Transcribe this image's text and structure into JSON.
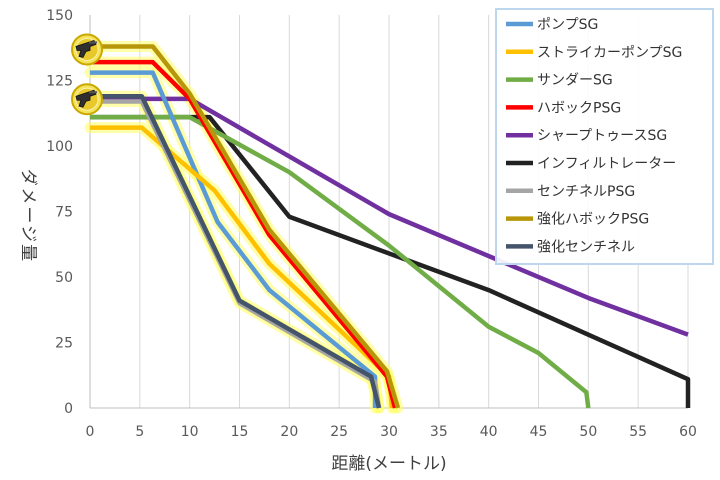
{
  "chart_data": {
    "type": "line",
    "xlabel": "距離(メートル)",
    "ylabel": "ダメージ量",
    "xlim": [
      0,
      60
    ],
    "ylim": [
      0,
      150
    ],
    "x_ticks": [
      "0",
      "5",
      "10",
      "15",
      "20",
      "25",
      "30",
      "35",
      "40",
      "45",
      "50",
      "55",
      "60"
    ],
    "y_ticks": [
      "0",
      "25",
      "50",
      "75",
      "100",
      "125",
      "150"
    ],
    "grid": "vertical",
    "legend_position": "top-right",
    "series": [
      {
        "name": "ポンプSG",
        "color": "#5b9bd5",
        "highlight": true,
        "x": [
          0,
          6.3,
          12.8,
          18,
          28.6,
          28.6
        ],
        "y": [
          128,
          128,
          71,
          45,
          12,
          0
        ]
      },
      {
        "name": "ストライカーポンプSG",
        "color": "#ffc000",
        "highlight": true,
        "x": [
          0,
          5.2,
          12.5,
          18,
          30,
          30.3
        ],
        "y": [
          107,
          107,
          83,
          55,
          12,
          0
        ]
      },
      {
        "name": "サンダーSG",
        "color": "#70ad47",
        "highlight": false,
        "x": [
          0,
          10,
          20,
          30,
          40,
          45,
          49.8,
          50
        ],
        "y": [
          111,
          111,
          90,
          62,
          31,
          21,
          6,
          0
        ]
      },
      {
        "name": "ハボックPSG",
        "color": "#ff0000",
        "highlight": true,
        "x": [
          0,
          6.3,
          10,
          18,
          29.8,
          30.6
        ],
        "y": [
          132,
          132,
          118,
          66,
          12,
          0
        ]
      },
      {
        "name": "シャープトゥースSG",
        "color": "#7030a0",
        "highlight": false,
        "x": [
          0,
          10,
          20,
          30,
          40,
          50,
          60
        ],
        "y": [
          118,
          118,
          96,
          74,
          58,
          42,
          28
        ]
      },
      {
        "name": "インフィルトレーター",
        "color": "#222222",
        "highlight": false,
        "x": [
          0,
          12,
          20,
          40,
          50,
          60,
          60
        ],
        "y": [
          111,
          111,
          73,
          45,
          28,
          11,
          0
        ]
      },
      {
        "name": "センチネルPSG",
        "color": "#a5a5a5",
        "highlight": true,
        "x": [
          0,
          5.2,
          15,
          28.6,
          29
        ],
        "y": [
          117,
          117,
          40,
          10,
          0
        ]
      },
      {
        "name": "強化ハボックPSG",
        "color": "#b8960a",
        "highlight": true,
        "x": [
          0,
          6.3,
          10,
          18,
          29.8,
          30.9
        ],
        "y": [
          138,
          138,
          120,
          68,
          14,
          0
        ]
      },
      {
        "name": "強化センチネル",
        "color": "#44546a",
        "highlight": true,
        "x": [
          0,
          5.2,
          15,
          28.2,
          29
        ],
        "y": [
          119,
          119,
          41,
          12,
          0
        ]
      }
    ],
    "markers": [
      {
        "icon": "shotgun-badge-icon",
        "x": 0,
        "y": 138
      },
      {
        "icon": "shotgun-badge-icon",
        "x": 0,
        "y": 119
      }
    ]
  }
}
